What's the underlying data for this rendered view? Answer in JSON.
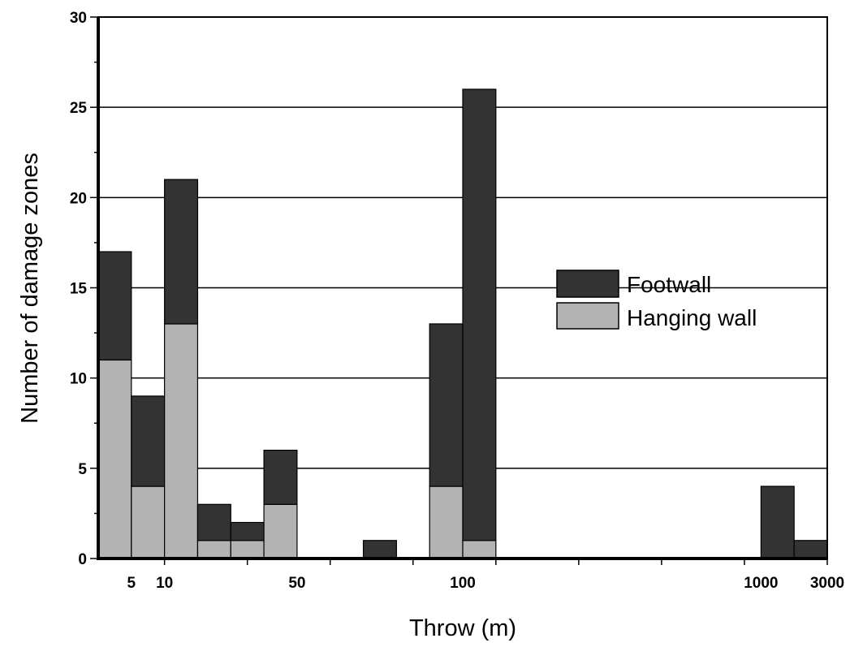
{
  "chart_data": {
    "type": "bar",
    "stacked": true,
    "title": "",
    "xlabel": "Throw (m)",
    "ylabel": "Number of damage zones",
    "ylim": [
      0,
      30
    ],
    "yticks": [
      0,
      5,
      10,
      15,
      20,
      25,
      30
    ],
    "grid": "horizontal at major y ticks",
    "x_tick_labels": [
      {
        "label": "5",
        "bin_edge": 1
      },
      {
        "label": "10",
        "bin_edge": 2
      },
      {
        "label": "50",
        "bin_edge": 6
      },
      {
        "label": "100",
        "bin_edge": 11
      },
      {
        "label": "1000",
        "bin_edge": 20
      },
      {
        "label": "3000",
        "bin_edge": 22
      }
    ],
    "bins": 22,
    "series": [
      {
        "name": "Footwall",
        "color": "#333333",
        "values": [
          6,
          5,
          8,
          2,
          1,
          3,
          0,
          0,
          1,
          0,
          9,
          25,
          0,
          0,
          0,
          0,
          0,
          0,
          0,
          0,
          4,
          1
        ]
      },
      {
        "name": "Hanging wall",
        "color": "#b3b3b3",
        "values": [
          11,
          4,
          13,
          1,
          1,
          3,
          0,
          0,
          0,
          0,
          4,
          1,
          0,
          0,
          0,
          0,
          0,
          0,
          0,
          0,
          0,
          0
        ]
      }
    ],
    "totals": [
      17,
      9,
      21,
      3,
      2,
      6,
      0,
      0,
      1,
      0,
      13,
      26,
      0,
      0,
      0,
      0,
      0,
      0,
      0,
      0,
      4,
      1
    ],
    "legend": {
      "placement": "center-right",
      "entries": [
        "Footwall",
        "Hanging wall"
      ]
    }
  }
}
